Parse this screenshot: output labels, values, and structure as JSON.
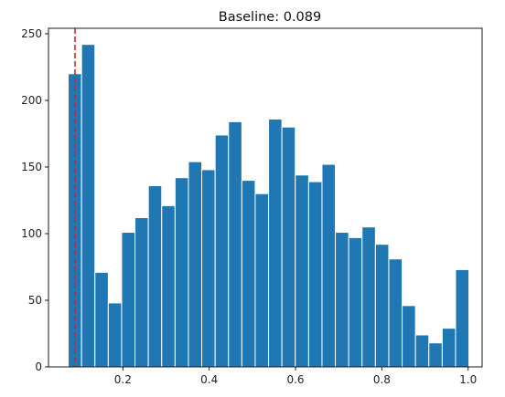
{
  "chart_data": {
    "type": "bar",
    "title": "Baseline: 0.089",
    "xlabel": "",
    "ylabel": "",
    "xlim": [
      0.0276,
      1.0324
    ],
    "ylim": [
      0,
      254.1
    ],
    "xticks": [
      0.2,
      0.4,
      0.6,
      0.8,
      1.0
    ],
    "xtick_labels": [
      "0.2",
      "0.4",
      "0.6",
      "0.8",
      "1.0"
    ],
    "yticks": [
      0,
      50,
      100,
      150,
      200,
      250
    ],
    "ytick_labels": [
      "0",
      "50",
      "100",
      "150",
      "200",
      "250"
    ],
    "bin_start": 0.0733,
    "bin_width": 0.03095,
    "counts": [
      220,
      242,
      71,
      48,
      101,
      112,
      136,
      121,
      142,
      154,
      148,
      174,
      184,
      140,
      130,
      186,
      180,
      144,
      139,
      152,
      101,
      97,
      105,
      92,
      81,
      46,
      24,
      18,
      29,
      73
    ],
    "reference_line": {
      "x": 0.089,
      "style": "dashed"
    },
    "grid": false,
    "colors": {
      "bar": "#1f77b4",
      "bar_edge": "#ffffff",
      "reference_line": "#d62728",
      "axis": "#000000"
    }
  }
}
